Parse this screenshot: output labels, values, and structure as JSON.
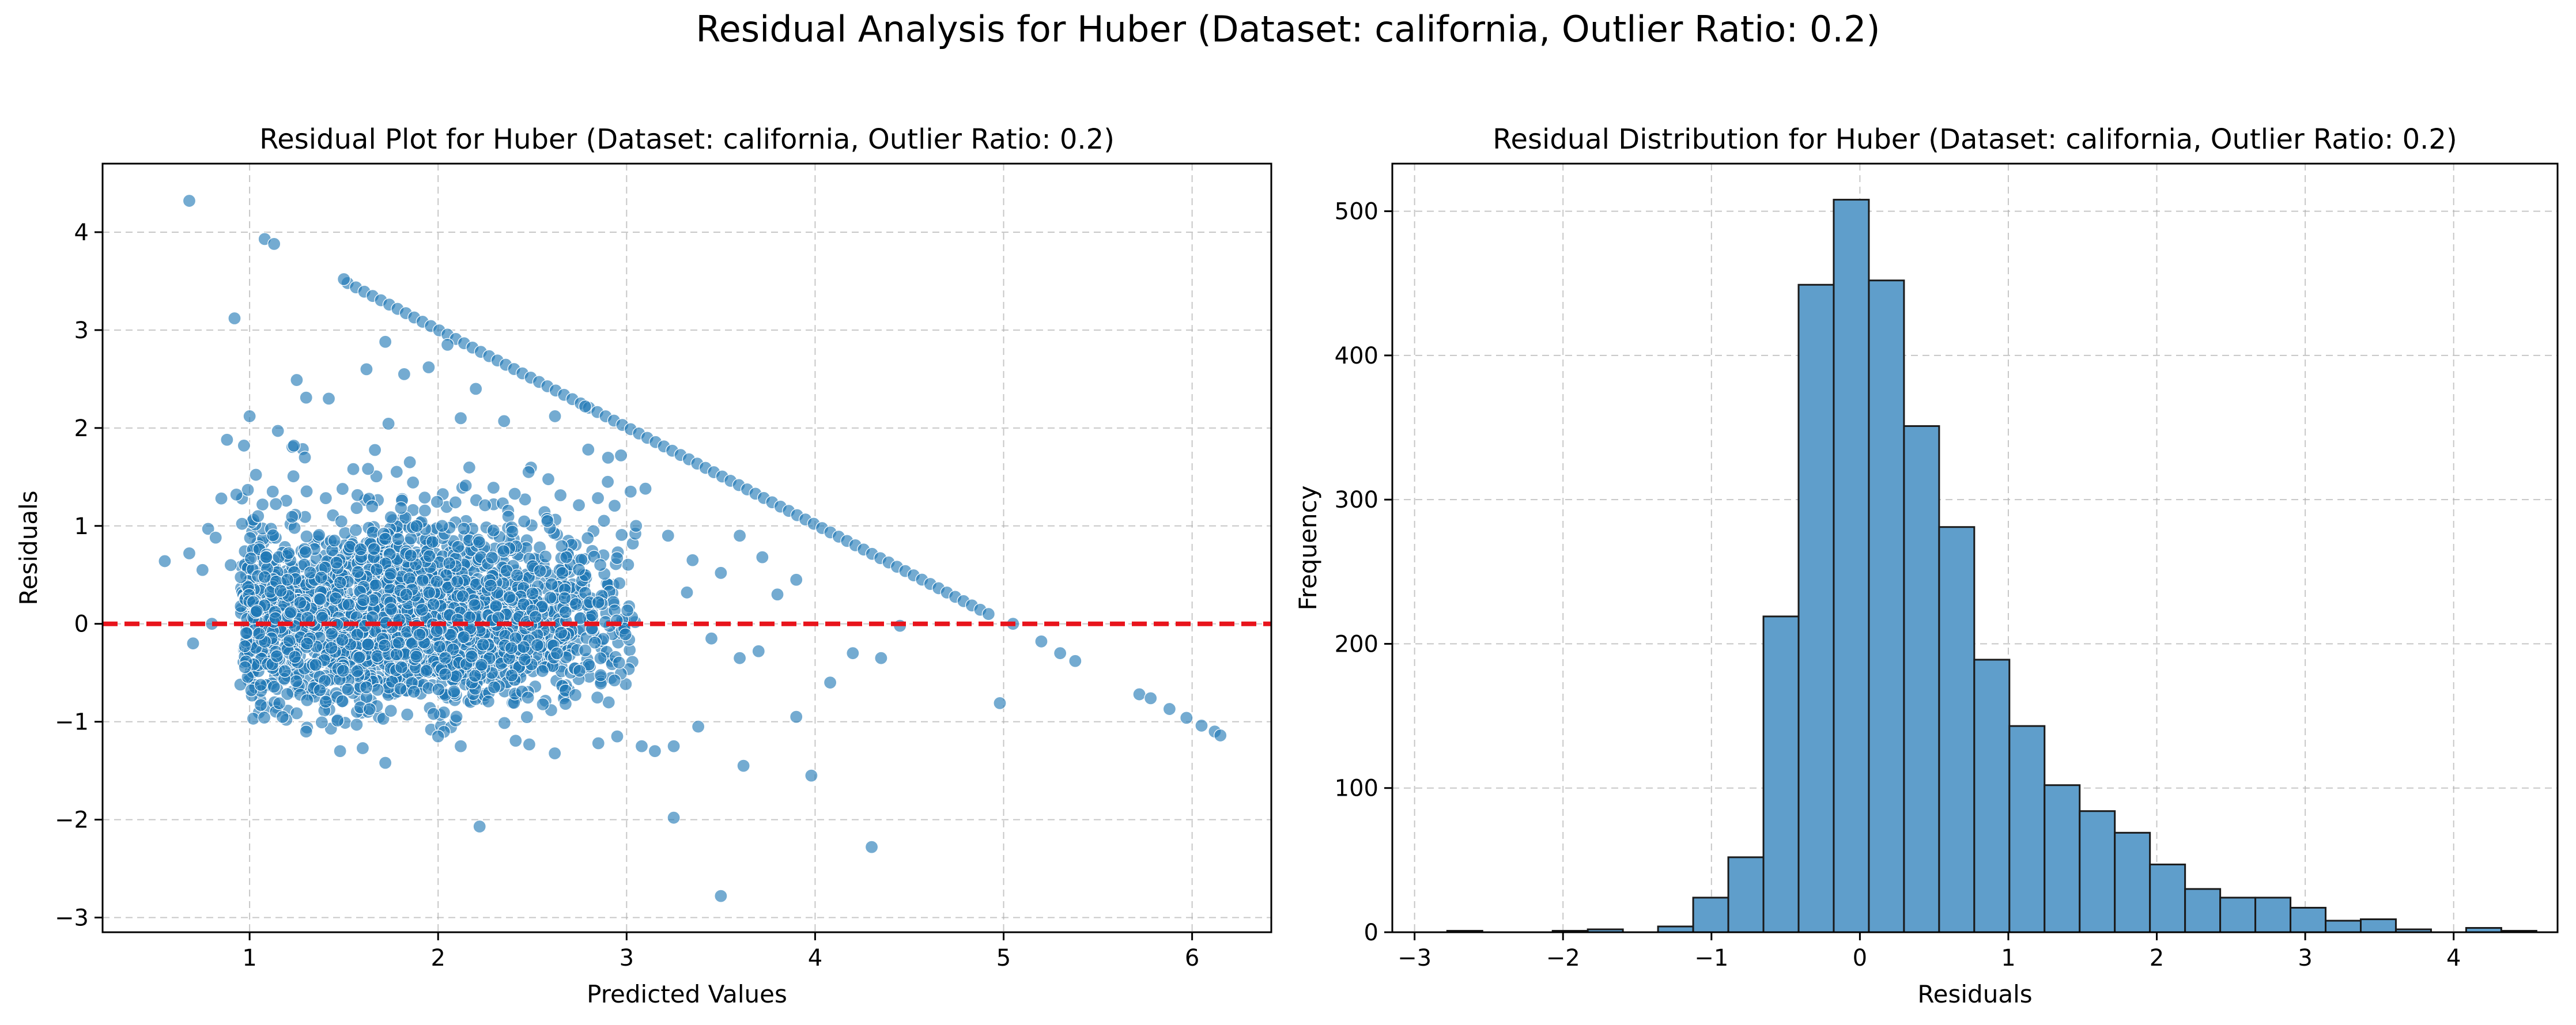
{
  "suptitle": "Residual Analysis for Huber (Dataset: california, Outlier Ratio: 0.2)",
  "colors": {
    "point": "#1f77b4",
    "point_edge": "#ffffff",
    "zero_line": "#e8141c",
    "grid": "#b0b0b0",
    "bar": "#5f9ecb",
    "bar_edge": "#1a1a1a"
  },
  "chart_data": [
    {
      "type": "scatter",
      "title": "Residual Plot for Huber (Dataset: california, Outlier Ratio: 0.2)",
      "xlabel": "Predicted Values",
      "ylabel": "Residuals",
      "xlim": [
        0.22,
        6.42
      ],
      "ylim": [
        -3.15,
        4.7
      ],
      "xticks": [
        1,
        2,
        3,
        4,
        5,
        6
      ],
      "yticks": [
        -3,
        -2,
        -1,
        0,
        1,
        2,
        3,
        4
      ],
      "grid": true,
      "reference_line": {
        "y": 0,
        "style": "dashed",
        "color": "red"
      },
      "points": [
        [
          0.68,
          4.32
        ],
        [
          1.08,
          3.93
        ],
        [
          1.13,
          3.88
        ],
        [
          0.92,
          3.12
        ],
        [
          1.5,
          3.52
        ],
        [
          0.88,
          1.88
        ],
        [
          0.97,
          1.82
        ],
        [
          0.85,
          1.28
        ],
        [
          0.93,
          1.32
        ],
        [
          0.55,
          0.64
        ],
        [
          0.68,
          0.72
        ],
        [
          0.75,
          0.55
        ],
        [
          0.78,
          0.97
        ],
        [
          0.82,
          0.88
        ],
        [
          0.7,
          -0.2
        ],
        [
          0.8,
          0.0
        ],
        [
          0.9,
          0.6
        ],
        [
          1.0,
          2.12
        ],
        [
          1.15,
          1.97
        ],
        [
          1.25,
          2.49
        ],
        [
          1.3,
          2.31
        ],
        [
          1.42,
          2.3
        ],
        [
          1.62,
          2.6
        ],
        [
          1.72,
          2.88
        ],
        [
          1.82,
          2.55
        ],
        [
          1.95,
          2.62
        ],
        [
          2.05,
          2.85
        ],
        [
          2.2,
          2.4
        ],
        [
          2.12,
          2.1
        ],
        [
          2.35,
          2.07
        ],
        [
          2.62,
          2.12
        ],
        [
          2.78,
          2.22
        ],
        [
          2.9,
          1.45
        ],
        [
          2.97,
          1.72
        ],
        [
          3.05,
          1.0
        ],
        [
          3.1,
          1.38
        ],
        [
          3.22,
          0.9
        ],
        [
          3.35,
          0.65
        ],
        [
          3.5,
          0.52
        ],
        [
          3.6,
          0.9
        ],
        [
          3.72,
          0.68
        ],
        [
          3.8,
          0.3
        ],
        [
          3.9,
          0.45
        ],
        [
          4.08,
          -0.6
        ],
        [
          4.2,
          -0.3
        ],
        [
          4.35,
          -0.35
        ],
        [
          4.45,
          -0.02
        ],
        [
          3.32,
          0.32
        ],
        [
          3.45,
          -0.15
        ],
        [
          3.6,
          -0.35
        ],
        [
          3.9,
          -0.95
        ],
        [
          3.98,
          -1.55
        ],
        [
          3.25,
          -1.98
        ],
        [
          3.5,
          -2.78
        ],
        [
          4.3,
          -2.28
        ],
        [
          2.22,
          -2.07
        ],
        [
          3.38,
          -1.05
        ],
        [
          3.62,
          -1.45
        ],
        [
          3.25,
          -1.25
        ],
        [
          3.15,
          -1.3
        ],
        [
          3.08,
          -1.25
        ],
        [
          2.95,
          -1.15
        ],
        [
          2.85,
          -1.22
        ],
        [
          1.48,
          -1.3
        ],
        [
          1.72,
          -1.42
        ],
        [
          1.6,
          -1.27
        ],
        [
          2.0,
          -1.15
        ],
        [
          2.12,
          -1.25
        ],
        [
          1.3,
          -1.1
        ],
        [
          3.7,
          -0.28
        ],
        [
          4.98,
          -0.81
        ],
        [
          5.2,
          -0.18
        ],
        [
          5.3,
          -0.3
        ],
        [
          5.38,
          -0.38
        ],
        [
          5.05,
          0.0
        ],
        [
          5.72,
          -0.72
        ],
        [
          5.78,
          -0.76
        ],
        [
          5.88,
          -0.87
        ],
        [
          5.97,
          -0.96
        ],
        [
          6.05,
          -1.04
        ],
        [
          6.12,
          -1.1
        ],
        [
          6.15,
          -1.14
        ],
        [
          1.05,
          -0.1
        ],
        [
          1.2,
          0.45
        ],
        [
          1.35,
          -0.42
        ],
        [
          1.45,
          0.85
        ],
        [
          1.55,
          1.58
        ],
        [
          1.65,
          1.2
        ],
        [
          1.75,
          0.15
        ],
        [
          1.85,
          1.65
        ],
        [
          2.48,
          1.55
        ],
        [
          2.58,
          1.05
        ],
        [
          2.68,
          0.68
        ],
        [
          2.75,
          -0.48
        ],
        [
          2.85,
          0.22
        ]
      ],
      "diagonal_band": {
        "from": [
          1.52,
          3.48
        ],
        "to": [
          4.92,
          0.1
        ],
        "count": 78
      },
      "cloud": {
        "count": 2600,
        "x_center": 1.85,
        "x_spread": 0.55,
        "y_center": -0.05,
        "y_spread": 0.55
      }
    },
    {
      "type": "bar",
      "title": "Residual Distribution for Huber (Dataset: california, Outlier Ratio: 0.2)",
      "xlabel": "Residuals",
      "ylabel": "Frequency",
      "xlim": [
        -3.15,
        4.7
      ],
      "ylim": [
        0,
        533
      ],
      "xticks": [
        -3,
        -2,
        -1,
        0,
        1,
        2,
        3,
        4
      ],
      "yticks": [
        0,
        100,
        200,
        300,
        400,
        500
      ],
      "grid": true,
      "bin_start": -2.78,
      "bin_width": 0.2367,
      "counts": [
        1,
        0,
        0,
        1,
        2,
        0,
        4,
        24,
        52,
        219,
        449,
        508,
        452,
        351,
        281,
        189,
        143,
        102,
        84,
        69,
        47,
        30,
        24,
        24,
        17,
        8,
        9,
        2,
        0,
        3,
        1
      ]
    }
  ]
}
